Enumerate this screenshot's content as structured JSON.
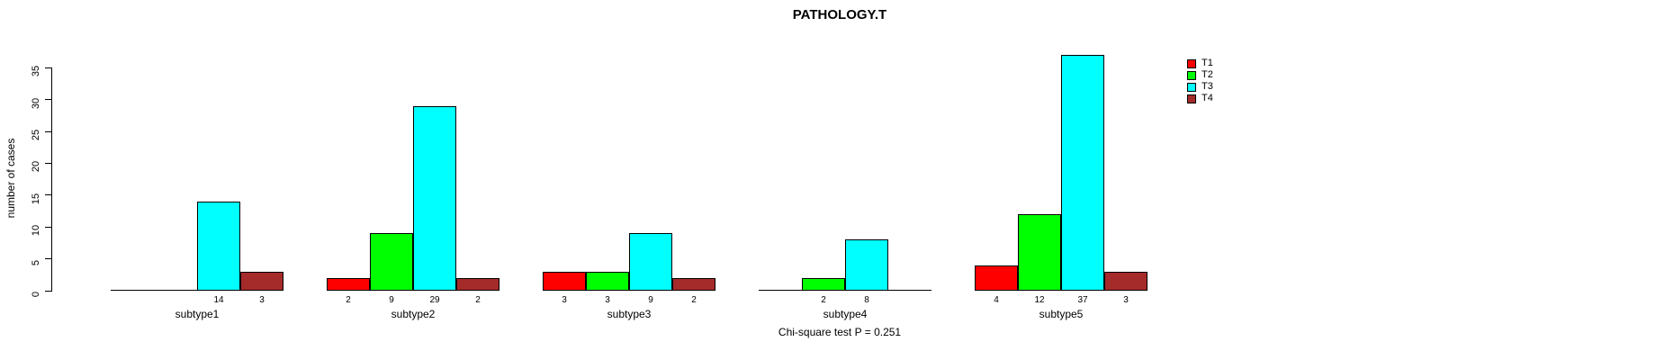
{
  "title": "PATHOLOGY.T",
  "ylabel": "number of cases",
  "footer": "Chi-square test P = 0.251",
  "legend": {
    "items": [
      {
        "label": "T1",
        "color": "#ff0000"
      },
      {
        "label": "T2",
        "color": "#00ff00"
      },
      {
        "label": "T3",
        "color": "#00ffff"
      },
      {
        "label": "T4",
        "color": "#a52a2a"
      }
    ]
  },
  "chart_data": {
    "type": "bar",
    "title": "PATHOLOGY.T",
    "xlabel": "",
    "ylabel": "number of cases",
    "categories": [
      "subtype1",
      "subtype2",
      "subtype3",
      "subtype4",
      "subtype5"
    ],
    "series": [
      {
        "name": "T1",
        "color": "#ff0000",
        "values": [
          0,
          2,
          3,
          0,
          4
        ]
      },
      {
        "name": "T2",
        "color": "#00ff00",
        "values": [
          0,
          9,
          3,
          2,
          12
        ]
      },
      {
        "name": "T3",
        "color": "#00ffff",
        "values": [
          14,
          29,
          9,
          8,
          37
        ]
      },
      {
        "name": "T4",
        "color": "#a52a2a",
        "values": [
          3,
          2,
          2,
          0,
          3
        ]
      }
    ],
    "bar_value_labels_shown_for_nonzero_only": true,
    "yticks": [
      0,
      5,
      10,
      15,
      20,
      25,
      30,
      35
    ],
    "ylim": [
      0,
      37
    ],
    "grid": false,
    "legend_position": "top-right",
    "annotation": "Chi-square test P = 0.251"
  }
}
